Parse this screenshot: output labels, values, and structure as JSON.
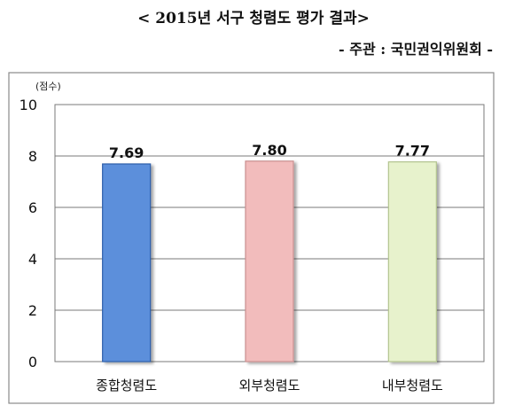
{
  "header": {
    "title": "< 2015년 서구 청렴도 평가 결과>",
    "subtitle": "- 주관 : 국민권익위원회 -"
  },
  "chart_data": {
    "type": "bar",
    "title": "< 2015년 서구 청렴도 평가 결과>",
    "subtitle": "- 주관 : 국민권익위원회 -",
    "ylabel": "(점수)",
    "xlabel": "",
    "categories": [
      "종합청렴도",
      "외부청렴도",
      "내부청렴도"
    ],
    "values": [
      7.69,
      7.8,
      7.77
    ],
    "value_labels": [
      "7.69",
      "7.80",
      "7.77"
    ],
    "ylim": [
      0,
      10
    ],
    "yticks": [
      0,
      2,
      4,
      6,
      8,
      10
    ],
    "grid": true,
    "legend": "none",
    "colors": [
      "#5b8fdb",
      "#f2bcbc",
      "#e7f2cc"
    ],
    "stroke_colors": [
      "#2e5faa",
      "#c98f8f",
      "#b3c48e"
    ]
  }
}
